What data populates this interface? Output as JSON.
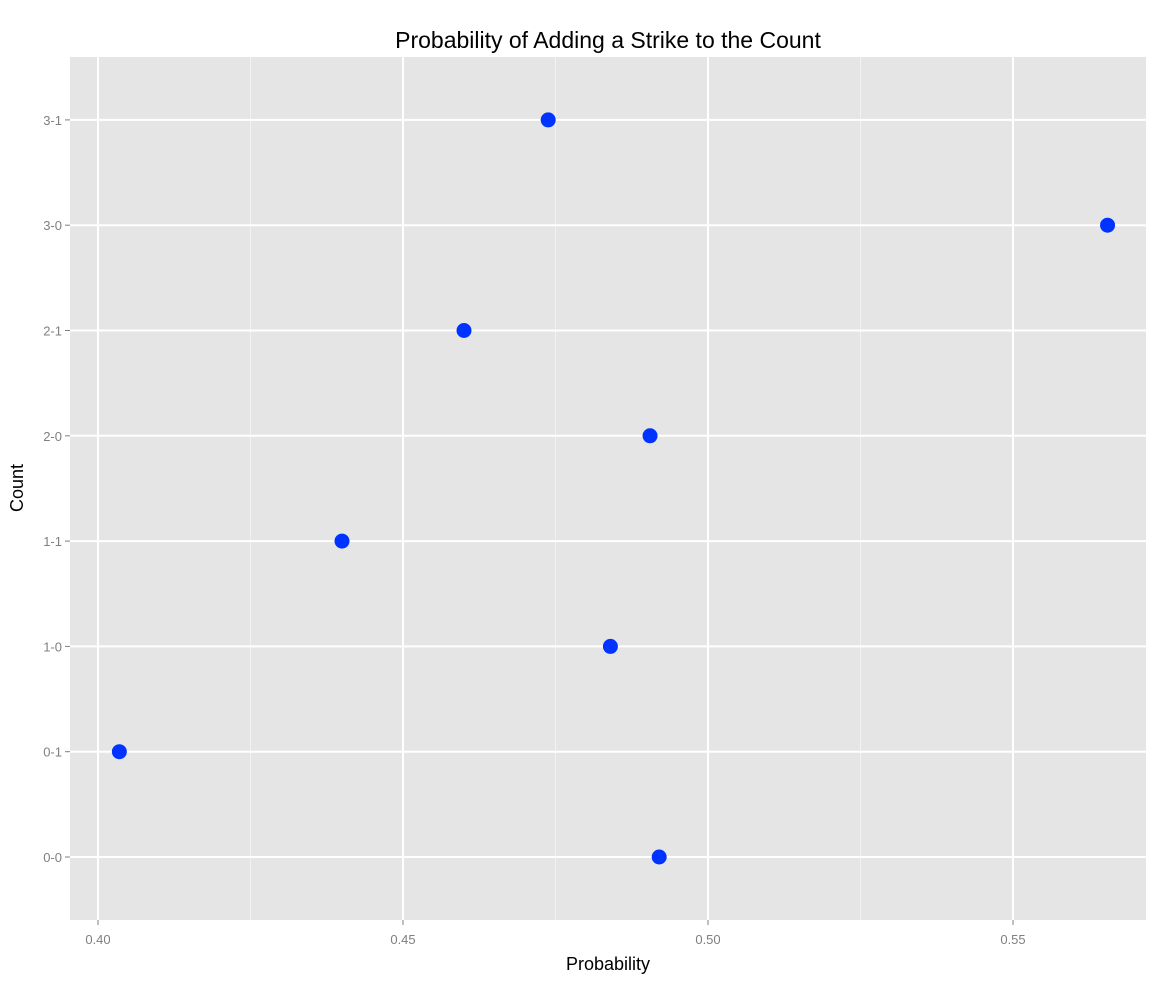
{
  "chart_data": {
    "type": "scatter",
    "title": "Probability of Adding a Strike to the Count",
    "xlabel": "Probability",
    "ylabel": "Count",
    "x_ticks": [
      0.4,
      0.45,
      0.5,
      0.55
    ],
    "x_tick_labels": [
      "0.40",
      "0.45",
      "0.50",
      "0.55"
    ],
    "xlim": [
      0.3955,
      0.5725
    ],
    "categories": [
      "0-0",
      "0-1",
      "1-0",
      "1-1",
      "2-0",
      "2-1",
      "3-0",
      "3-1"
    ],
    "points": [
      {
        "count": "0-0",
        "probability": 0.492
      },
      {
        "count": "0-1",
        "probability": 0.4035
      },
      {
        "count": "1-0",
        "probability": 0.484
      },
      {
        "count": "1-1",
        "probability": 0.44
      },
      {
        "count": "2-0",
        "probability": 0.4905
      },
      {
        "count": "2-1",
        "probability": 0.46
      },
      {
        "count": "3-0",
        "probability": 0.5655
      },
      {
        "count": "3-1",
        "probability": 0.4738
      }
    ],
    "grid": true,
    "point_color": "#0033ff",
    "panel_color": "#e5e5e5",
    "gridline_color": "#ffffff"
  }
}
